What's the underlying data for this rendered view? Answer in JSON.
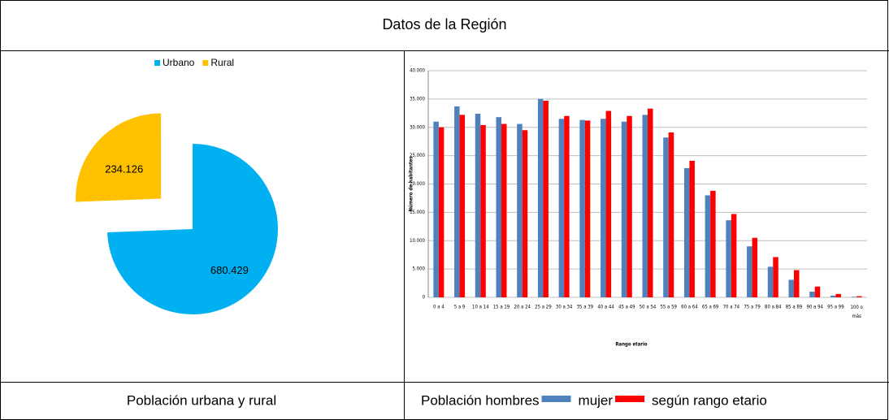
{
  "title": "Datos de la Región",
  "chart_data": [
    {
      "type": "pie",
      "categories": [
        "Urbano",
        "Rural"
      ],
      "values": [
        680429,
        234126
      ],
      "value_labels": [
        "680.429",
        "234.126"
      ],
      "colors": [
        "#00b0f0",
        "#ffc000"
      ],
      "exploded": [
        false,
        true
      ],
      "legend": "top"
    },
    {
      "type": "bar",
      "ylabel": "Número de habitantes",
      "xlabel": "Rango etario",
      "categories": [
        "0 a 4",
        "5 a 9",
        "10 a 14",
        "15 a 19",
        "20 a 24",
        "25 a 29",
        "30 a 34",
        "35 a 39",
        "40 a 44",
        "45 a 49",
        "50 a 54",
        "55 a 59",
        "60 a 64",
        "65 a 69",
        "70 a 74",
        "75 a 79",
        "80 a 84",
        "85 a 89",
        "90 a 94",
        "95 a 99",
        "100 o más"
      ],
      "series": [
        {
          "color": "#4f81bd",
          "values": [
            31000,
            33700,
            32400,
            31800,
            30600,
            35000,
            31500,
            31300,
            31500,
            31000,
            32200,
            28200,
            22800,
            18000,
            13600,
            9000,
            5400,
            3100,
            1000,
            300,
            100
          ]
        },
        {
          "color": "#ff0000",
          "values": [
            30000,
            32200,
            30400,
            30600,
            29500,
            34700,
            32000,
            31200,
            32900,
            32000,
            33300,
            29100,
            24100,
            18800,
            14700,
            10500,
            7100,
            4800,
            1900,
            600,
            200
          ]
        }
      ],
      "ylim": [
        0,
        40000
      ],
      "yticks": [
        0,
        {
          "value": 5000,
          "label": "5.000"
        },
        {
          "value": 10000,
          "label": "10.000"
        },
        {
          "value": 15000,
          "label": "15.000"
        },
        {
          "value": 20000,
          "label": "20.000"
        },
        {
          "value": 25000,
          "label": "25.000"
        },
        {
          "value": 30000,
          "label": "30.000"
        },
        {
          "value": 35000,
          "label": "35.000"
        },
        {
          "value": 40000,
          "label": "40.000"
        }
      ],
      "grid": true
    }
  ],
  "captions": [
    "Población urbana y rural",
    [
      "Población hombres",
      "mujer",
      "según rango etario"
    ]
  ]
}
